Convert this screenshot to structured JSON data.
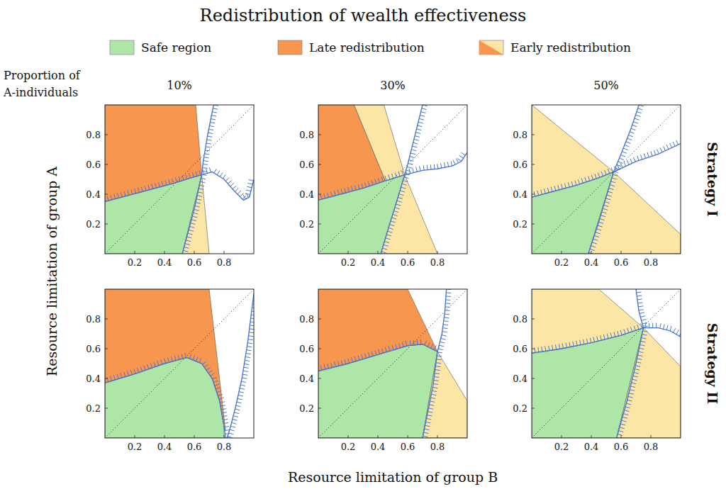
{
  "figure": {
    "title": "Redistribution of wealth effectiveness",
    "legend_entries": [
      {
        "label": "Safe region",
        "color": "#aee6a8"
      },
      {
        "label": "Late redistribution",
        "color": "#f7974f"
      },
      {
        "label": "Early redistribution",
        "colors": [
          "#fbe6a6",
          "#f7974f"
        ]
      }
    ],
    "column_header": [
      "Proportion of",
      "A-individuals"
    ],
    "column_labels": [
      "10%",
      "30%",
      "50%"
    ],
    "row_labels": [
      "Strategy I",
      "Strategy II"
    ],
    "xlabel": "Resource limitation of group B",
    "ylabel": "Resource limitation of group A"
  },
  "chart_data": [
    {
      "type": "area",
      "xlim": [
        0,
        1
      ],
      "ylim": [
        0,
        1
      ],
      "xticks": [
        0.2,
        0.4,
        0.6,
        0.8
      ],
      "yticks": [
        0.2,
        0.4,
        0.6,
        0.8
      ],
      "grid": false,
      "series": [
        {
          "type": "area",
          "color": "#aee6a8",
          "x": [
            0,
            0,
            0.15,
            0.3,
            0.45,
            0.58,
            0.65,
            0.52
          ],
          "values": [
            0,
            0.35,
            0.39,
            0.43,
            0.47,
            0.51,
            0.53,
            0
          ]
        },
        {
          "type": "area",
          "color": "#f7974f",
          "x": [
            0,
            0,
            0.15,
            0.3,
            0.45,
            0.58,
            0.65,
            0.61
          ],
          "values": [
            1,
            0.35,
            0.39,
            0.43,
            0.47,
            0.51,
            0.53,
            1
          ]
        },
        {
          "type": "area",
          "color": "#fbe6a6",
          "x": [
            0.52,
            0.65,
            0.7
          ],
          "values": [
            0,
            0.53,
            0
          ]
        },
        {
          "type": "line",
          "color": "#222222",
          "line_style": "dotted",
          "x": [
            0,
            1
          ],
          "values": [
            0,
            1
          ]
        },
        {
          "type": "line",
          "color": "#4a76d1",
          "line_style": "hatched",
          "x": [
            0,
            0.15,
            0.3,
            0.45,
            0.58,
            0.65,
            0.72,
            0.8,
            0.87,
            0.93,
            0.97,
            1
          ],
          "values": [
            0.35,
            0.39,
            0.43,
            0.47,
            0.51,
            0.53,
            0.55,
            0.5,
            0.42,
            0.36,
            0.38,
            0.5
          ]
        },
        {
          "type": "line",
          "color": "#4a76d1",
          "line_style": "hatched",
          "x": [
            0.73,
            0.69,
            0.66,
            0.65,
            0.6,
            0.56,
            0.52
          ],
          "values": [
            1,
            0.8,
            0.62,
            0.53,
            0.3,
            0.15,
            0
          ]
        }
      ]
    },
    {
      "type": "area",
      "xlim": [
        0,
        1
      ],
      "ylim": [
        0,
        1
      ],
      "xticks": [
        0.2,
        0.4,
        0.6,
        0.8
      ],
      "yticks": [
        0.2,
        0.4,
        0.6,
        0.8
      ],
      "grid": false,
      "series": [
        {
          "type": "area",
          "color": "#aee6a8",
          "x": [
            0,
            0,
            0.15,
            0.3,
            0.45,
            0.58,
            0.42
          ],
          "values": [
            0,
            0.36,
            0.4,
            0.44,
            0.49,
            0.53,
            0
          ]
        },
        {
          "type": "area",
          "color": "#f7974f",
          "x": [
            0,
            0,
            0.15,
            0.3,
            0.45,
            0.24
          ],
          "values": [
            1,
            0.36,
            0.4,
            0.44,
            0.49,
            1
          ]
        },
        {
          "type": "area",
          "color": "#fbe6a6",
          "x": [
            0.24,
            0.45,
            0.58,
            0.44
          ],
          "values": [
            1,
            0.49,
            0.53,
            1
          ]
        },
        {
          "type": "area",
          "color": "#fbe6a6",
          "x": [
            0.42,
            0.58,
            0.8
          ],
          "values": [
            0,
            0.53,
            0
          ]
        },
        {
          "type": "line",
          "color": "#222222",
          "line_style": "dotted",
          "x": [
            0,
            1
          ],
          "values": [
            0,
            1
          ]
        },
        {
          "type": "line",
          "color": "#4a76d1",
          "line_style": "hatched",
          "x": [
            0,
            0.15,
            0.3,
            0.45,
            0.58,
            0.7,
            0.8,
            0.9,
            0.96,
            1
          ],
          "values": [
            0.36,
            0.4,
            0.44,
            0.49,
            0.53,
            0.56,
            0.57,
            0.59,
            0.62,
            0.68
          ]
        },
        {
          "type": "line",
          "color": "#4a76d1",
          "line_style": "hatched",
          "x": [
            0.7,
            0.67,
            0.63,
            0.6,
            0.58,
            0.52,
            0.47,
            0.42
          ],
          "values": [
            1,
            0.88,
            0.72,
            0.6,
            0.53,
            0.33,
            0.17,
            0
          ]
        }
      ]
    },
    {
      "type": "area",
      "xlim": [
        0,
        1
      ],
      "ylim": [
        0,
        1
      ],
      "xticks": [
        0.2,
        0.4,
        0.6,
        0.8
      ],
      "yticks": [
        0.2,
        0.4,
        0.6,
        0.8
      ],
      "grid": false,
      "series": [
        {
          "type": "area",
          "color": "#aee6a8",
          "x": [
            0,
            0,
            0.15,
            0.3,
            0.45,
            0.55,
            0.38
          ],
          "values": [
            0,
            0.38,
            0.42,
            0.46,
            0.51,
            0.55,
            0
          ]
        },
        {
          "type": "area",
          "color": "#fbe6a6",
          "x": [
            0,
            0,
            0.15,
            0.3,
            0.45,
            0.55
          ],
          "values": [
            1,
            0.38,
            0.42,
            0.46,
            0.51,
            0.55
          ]
        },
        {
          "type": "area",
          "color": "#fbe6a6",
          "x": [
            0.38,
            0.55,
            1,
            1
          ],
          "values": [
            0,
            0.55,
            0.13,
            0
          ]
        },
        {
          "type": "line",
          "color": "#222222",
          "line_style": "dotted",
          "x": [
            0,
            1
          ],
          "values": [
            0,
            1
          ]
        },
        {
          "type": "line",
          "color": "#4a76d1",
          "line_style": "hatched",
          "x": [
            0,
            0.15,
            0.3,
            0.45,
            0.55,
            0.7,
            0.85,
            1
          ],
          "values": [
            0.38,
            0.42,
            0.46,
            0.51,
            0.55,
            0.62,
            0.67,
            0.74
          ]
        },
        {
          "type": "line",
          "color": "#4a76d1",
          "line_style": "hatched",
          "x": [
            0.72,
            0.67,
            0.6,
            0.55,
            0.5,
            0.44,
            0.38
          ],
          "values": [
            1,
            0.85,
            0.67,
            0.55,
            0.38,
            0.18,
            0
          ]
        }
      ]
    },
    {
      "type": "area",
      "xlim": [
        0,
        1
      ],
      "ylim": [
        0,
        1
      ],
      "xticks": [
        0.2,
        0.4,
        0.6,
        0.8
      ],
      "yticks": [
        0.2,
        0.4,
        0.6,
        0.8
      ],
      "grid": false,
      "series": [
        {
          "type": "area",
          "color": "#aee6a8",
          "x": [
            0,
            0,
            0.2,
            0.4,
            0.55,
            0.65,
            0.72,
            0.77,
            0.8,
            0.8
          ],
          "values": [
            0,
            0.37,
            0.43,
            0.5,
            0.54,
            0.5,
            0.4,
            0.25,
            0.08,
            0
          ]
        },
        {
          "type": "area",
          "color": "#f7974f",
          "x": [
            0,
            0.7,
            0.81,
            0.8,
            0.77,
            0.72,
            0.65,
            0.55,
            0.4,
            0.2,
            0
          ],
          "values": [
            1,
            1,
            0.05,
            0.08,
            0.25,
            0.4,
            0.5,
            0.54,
            0.5,
            0.43,
            0.37
          ]
        },
        {
          "type": "line",
          "color": "#222222",
          "line_style": "dotted",
          "x": [
            0,
            1
          ],
          "values": [
            0,
            1
          ]
        },
        {
          "type": "line",
          "color": "#4a76d1",
          "line_style": "hatched",
          "x": [
            0,
            0.2,
            0.4,
            0.55,
            0.65,
            0.72,
            0.77,
            0.8,
            0.81
          ],
          "values": [
            0.37,
            0.43,
            0.5,
            0.54,
            0.5,
            0.4,
            0.25,
            0.08,
            0
          ]
        },
        {
          "type": "line",
          "color": "#4a76d1",
          "line_style": "hatched",
          "x": [
            1,
            0.96,
            0.92,
            0.88,
            0.85,
            0.83,
            0.82
          ],
          "values": [
            0.97,
            0.65,
            0.4,
            0.22,
            0.1,
            0.03,
            0
          ]
        }
      ]
    },
    {
      "type": "area",
      "xlim": [
        0,
        1
      ],
      "ylim": [
        0,
        1
      ],
      "xticks": [
        0.2,
        0.4,
        0.6,
        0.8
      ],
      "yticks": [
        0.2,
        0.4,
        0.6,
        0.8
      ],
      "grid": false,
      "series": [
        {
          "type": "area",
          "color": "#aee6a8",
          "x": [
            0,
            0,
            0.2,
            0.4,
            0.6,
            0.7,
            0.8,
            0.7
          ],
          "values": [
            0,
            0.45,
            0.5,
            0.56,
            0.62,
            0.63,
            0.58,
            0
          ]
        },
        {
          "type": "area",
          "color": "#f7974f",
          "x": [
            0,
            0,
            0.2,
            0.4,
            0.6,
            0.7,
            0.8,
            0.6
          ],
          "values": [
            1,
            0.45,
            0.5,
            0.56,
            0.62,
            0.63,
            0.58,
            1
          ]
        },
        {
          "type": "area",
          "color": "#fbe6a6",
          "x": [
            0.7,
            0.8,
            1,
            1
          ],
          "values": [
            0,
            0.58,
            0.25,
            0
          ]
        },
        {
          "type": "line",
          "color": "#222222",
          "line_style": "dotted",
          "x": [
            0,
            1
          ],
          "values": [
            0,
            1
          ]
        },
        {
          "type": "line",
          "color": "#4a76d1",
          "line_style": "hatched",
          "x": [
            0,
            0.2,
            0.4,
            0.6,
            0.7,
            0.8
          ],
          "values": [
            0.45,
            0.5,
            0.56,
            0.62,
            0.63,
            0.58
          ]
        },
        {
          "type": "line",
          "color": "#4a76d1",
          "line_style": "hatched",
          "x": [
            0.86,
            0.85,
            0.83,
            0.81,
            0.8,
            0.77,
            0.73,
            0.7
          ],
          "values": [
            1,
            0.85,
            0.7,
            0.62,
            0.58,
            0.35,
            0.15,
            0
          ]
        }
      ]
    },
    {
      "type": "area",
      "xlim": [
        0,
        1
      ],
      "ylim": [
        0,
        1
      ],
      "xticks": [
        0.2,
        0.4,
        0.6,
        0.8
      ],
      "yticks": [
        0.2,
        0.4,
        0.6,
        0.8
      ],
      "grid": false,
      "series": [
        {
          "type": "area",
          "color": "#aee6a8",
          "x": [
            0,
            0,
            0.2,
            0.4,
            0.6,
            0.75,
            0.57
          ],
          "values": [
            0,
            0.57,
            0.6,
            0.64,
            0.69,
            0.74,
            0
          ]
        },
        {
          "type": "area",
          "color": "#fbe6a6",
          "x": [
            0,
            0,
            0.2,
            0.4,
            0.6,
            0.75,
            0.45
          ],
          "values": [
            1,
            0.57,
            0.6,
            0.64,
            0.69,
            0.74,
            1
          ]
        },
        {
          "type": "area",
          "color": "#fbe6a6",
          "x": [
            0.57,
            0.75,
            1,
            1
          ],
          "values": [
            0,
            0.74,
            0.48,
            0
          ]
        },
        {
          "type": "line",
          "color": "#222222",
          "line_style": "dotted",
          "x": [
            0,
            1
          ],
          "values": [
            0,
            1
          ]
        },
        {
          "type": "line",
          "color": "#4a76d1",
          "line_style": "hatched",
          "x": [
            0,
            0.2,
            0.4,
            0.6,
            0.75,
            0.85,
            0.93,
            1
          ],
          "values": [
            0.57,
            0.6,
            0.64,
            0.69,
            0.74,
            0.74,
            0.72,
            0.68
          ]
        },
        {
          "type": "line",
          "color": "#4a76d1",
          "line_style": "hatched",
          "x": [
            0.7,
            0.72,
            0.75,
            0.7,
            0.64,
            0.57
          ],
          "values": [
            1,
            0.85,
            0.74,
            0.5,
            0.25,
            0
          ]
        }
      ]
    }
  ]
}
